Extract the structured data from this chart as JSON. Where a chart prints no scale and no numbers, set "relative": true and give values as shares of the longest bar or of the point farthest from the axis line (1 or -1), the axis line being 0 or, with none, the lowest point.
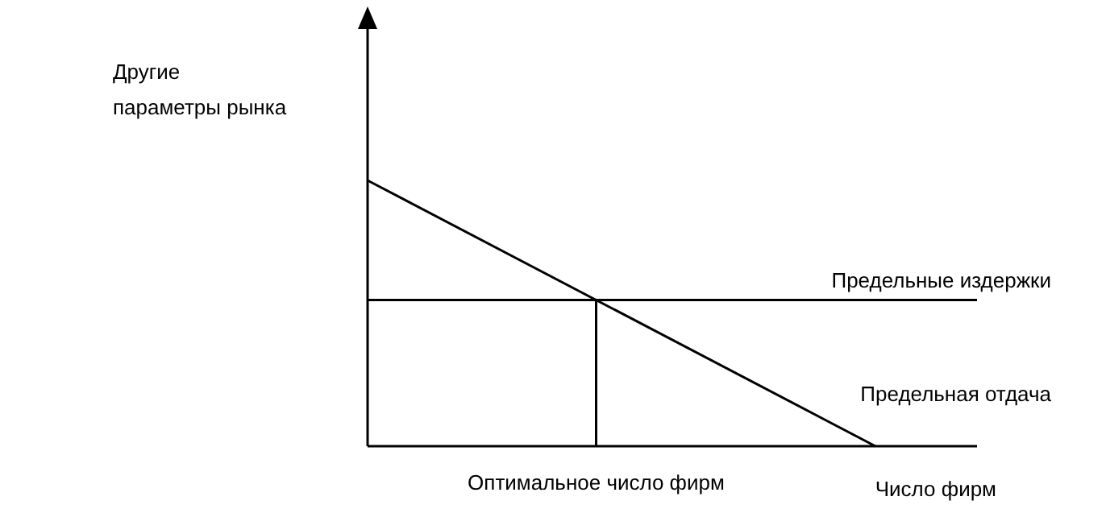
{
  "chart_data": {
    "type": "line",
    "relative": true,
    "ylabel": "Другие параметры рынка",
    "xlabel": "Число фирм",
    "categories": [
      null,
      null,
      null,
      null,
      null,
      null,
      null,
      null,
      null,
      null,
      null,
      null,
      null,
      null,
      null,
      null,
      null,
      null,
      null,
      null,
      null,
      null,
      null,
      null,
      null
    ],
    "series": [
      {
        "name": "Предельная отдача",
        "color": "#000000",
        "values": [
          1,
          null,
          null,
          null,
          null,
          null,
          null,
          null,
          null,
          null,
          null,
          null,
          null,
          null,
          null,
          null,
          null,
          null,
          null,
          null,
          0,
          null,
          null,
          null,
          null
        ]
      },
      {
        "name": "Предельные издержки",
        "color": "#000000",
        "values": [
          0.55,
          null,
          null,
          null,
          null,
          null,
          null,
          null,
          null,
          null,
          null,
          null,
          null,
          null,
          null,
          null,
          null,
          null,
          null,
          null,
          null,
          null,
          null,
          null,
          0.55
        ]
      }
    ],
    "annotations": [
      "Оптимальное число фирм"
    ],
    "grid": false,
    "legend": false,
    "marker": "none",
    "line_style": "solid"
  }
}
